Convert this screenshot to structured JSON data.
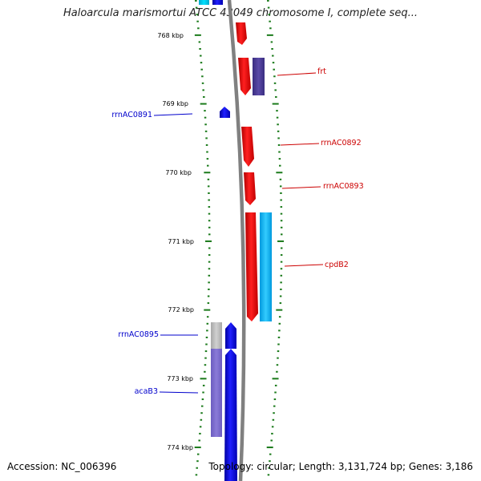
{
  "title": "Haloarcula marismortui ATCC 43049 chromosome I, complete seq...",
  "footer": {
    "accession": "Accession: NC_006396",
    "summary": "Topology: circular; Length: 3,131,724 bp; Genes: 3,186"
  },
  "colors": {
    "forward_gene": "#ff0000",
    "reverse_gene": "#0000ff",
    "rna_gene": "#7b68cc",
    "other_gene": "#00bfff",
    "pseudo_gene": "#bdbdbd",
    "backbone": "#808080",
    "tick": "#1a7a1a"
  },
  "scale": {
    "unit": "kbp",
    "labels": [
      "768 kbp",
      "769 kbp",
      "770 kbp",
      "771 kbp",
      "772 kbp",
      "773 kbp",
      "774 kbp"
    ]
  },
  "features": [
    {
      "strand": "reverse",
      "kind": "cds",
      "start_kbp": 767.56,
      "end_kbp": 767.8,
      "label": ""
    },
    {
      "strand": "reverse",
      "kind": "other",
      "start_kbp": 767.56,
      "end_kbp": 767.7,
      "label": ""
    },
    {
      "strand": "forward",
      "kind": "cds",
      "start_kbp": 767.72,
      "end_kbp": 767.95,
      "label": ""
    },
    {
      "strand": "forward",
      "kind": "cds",
      "start_kbp": 768.1,
      "end_kbp": 768.55,
      "label": ""
    },
    {
      "strand": "forward",
      "kind": "rna",
      "start_kbp": 768.1,
      "end_kbp": 768.6,
      "label": "frt"
    },
    {
      "strand": "reverse",
      "kind": "cds",
      "start_kbp": 769.05,
      "end_kbp": 769.2,
      "label": "rrnAC0891"
    },
    {
      "strand": "forward",
      "kind": "cds",
      "start_kbp": 769.35,
      "end_kbp": 769.95,
      "label": "rrnAC0892"
    },
    {
      "strand": "forward",
      "kind": "cds",
      "start_kbp": 770.0,
      "end_kbp": 770.5,
      "label": "rrnAC0893"
    },
    {
      "strand": "forward",
      "kind": "cds",
      "start_kbp": 770.6,
      "end_kbp": 772.2,
      "label": ""
    },
    {
      "strand": "forward",
      "kind": "other",
      "start_kbp": 770.6,
      "end_kbp": 772.2,
      "label": "cpdB2"
    },
    {
      "strand": "reverse",
      "kind": "pseudo",
      "start_kbp": 772.2,
      "end_kbp": 772.6,
      "label": ""
    },
    {
      "strand": "reverse",
      "kind": "cds",
      "start_kbp": 772.2,
      "end_kbp": 772.6,
      "label": "rrnAC0895"
    },
    {
      "strand": "reverse",
      "kind": "rna",
      "start_kbp": 772.6,
      "end_kbp": 774.0,
      "label": "acaB3"
    },
    {
      "strand": "reverse",
      "kind": "cds",
      "start_kbp": 772.6,
      "end_kbp": 774.5,
      "label": ""
    }
  ]
}
